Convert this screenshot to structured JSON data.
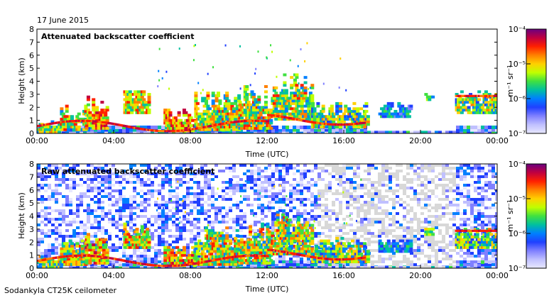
{
  "date_label": "17 June 2015",
  "footer_label": "Sodankyla CT25K ceilometer",
  "colorbar": {
    "unit_label": "m⁻¹ sr⁻¹",
    "ticks": [
      "10⁻⁴",
      "10⁻⁵",
      "10⁻⁶",
      "10⁻⁷"
    ],
    "colors": [
      "#6a0080",
      "#c00040",
      "#ff2000",
      "#ff8000",
      "#ffd000",
      "#c0ff00",
      "#40e040",
      "#00c0a0",
      "#0080ff",
      "#2040ff",
      "#8080ff",
      "#c0c0ff",
      "#e8e8ff"
    ]
  },
  "chart_data": [
    {
      "type": "heatmap",
      "title": "Attenuated backscatter coefficient",
      "xlabel": "Time (UTC)",
      "ylabel": "Height (km)",
      "xticks": [
        "00:00",
        "04:00",
        "08:00",
        "12:00",
        "16:00",
        "20:00",
        "00:00"
      ],
      "yticks": [
        "0",
        "1",
        "2",
        "3",
        "4",
        "5",
        "6",
        "7",
        "8"
      ],
      "xlim": [
        0,
        24
      ],
      "ylim": [
        0,
        8
      ],
      "color_scale": "log",
      "clim": [
        1e-07,
        0.0001
      ]
    },
    {
      "type": "heatmap",
      "title": "Raw attenuated backscatter coefficient",
      "xlabel": "Time (UTC)",
      "ylabel": "Height (km)",
      "xticks": [
        "00:00",
        "04:00",
        "08:00",
        "12:00",
        "16:00",
        "20:00",
        "00:00"
      ],
      "yticks": [
        "0",
        "1",
        "2",
        "3",
        "4",
        "5",
        "6",
        "7",
        "8"
      ],
      "xlim": [
        0,
        24
      ],
      "ylim": [
        0,
        8
      ],
      "color_scale": "log",
      "clim": [
        1e-07,
        0.0001
      ]
    }
  ]
}
